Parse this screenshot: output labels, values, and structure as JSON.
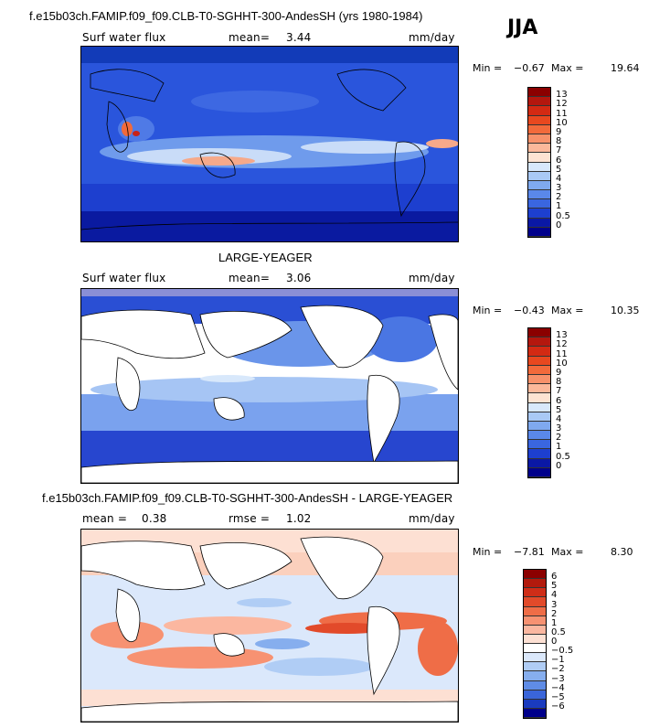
{
  "header": {
    "title": "f.e15b03ch.FAMIP.f09_f09.CLB-T0-SGHHT-300-AndesSH (yrs 1980-1984)",
    "season": "JJA"
  },
  "panel1": {
    "field": "Surf water flux",
    "stat_label": "mean=",
    "stat_value": "3.44",
    "units": "mm/day",
    "min_label": "Min =",
    "min_value": "−0.67",
    "max_label": "Max =",
    "max_value": "19.64",
    "ticks": [
      "13",
      "12",
      "11",
      "10",
      "9",
      "8",
      "7",
      "6",
      "5",
      "4",
      "3",
      "2",
      "1",
      "0.5",
      "0"
    ],
    "colors": [
      "#8b0000",
      "#b4170e",
      "#d32a13",
      "#e8481f",
      "#f26a3b",
      "#f7916a",
      "#fbb89a",
      "#fde3d2",
      "#d8e8fb",
      "#a9c9f5",
      "#7fa9ef",
      "#5a88ea",
      "#3a66e0",
      "#1d3fcf",
      "#0a18a5",
      "#00008b"
    ]
  },
  "panel2": {
    "title": "LARGE-YEAGER",
    "field": "Surf water flux",
    "stat_label": "mean=",
    "stat_value": "3.06",
    "units": "mm/day",
    "min_label": "Min =",
    "min_value": "−0.43",
    "max_label": "Max =",
    "max_value": "10.35",
    "ticks": [
      "13",
      "12",
      "11",
      "10",
      "9",
      "8",
      "7",
      "6",
      "5",
      "4",
      "3",
      "2",
      "1",
      "0.5",
      "0"
    ],
    "colors": [
      "#8b0000",
      "#b4170e",
      "#d32a13",
      "#e8481f",
      "#f26a3b",
      "#f7916a",
      "#fbb89a",
      "#fde3d2",
      "#d8e8fb",
      "#a9c9f5",
      "#7fa9ef",
      "#5a88ea",
      "#3a66e0",
      "#1d3fcf",
      "#0a18a5",
      "#00008b"
    ]
  },
  "panel3": {
    "title": "f.e15b03ch.FAMIP.f09_f09.CLB-T0-SGHHT-300-AndesSH - LARGE-YEAGER",
    "mean_label": "mean =",
    "mean_value": "0.38",
    "rmse_label": "rmse =",
    "rmse_value": "1.02",
    "units": "mm/day",
    "min_label": "Min =",
    "min_value": "−7.81",
    "max_label": "Max =",
    "max_value": "8.30",
    "ticks": [
      "6",
      "5",
      "4",
      "3",
      "2",
      "1",
      "0.5",
      "0",
      "−0.5",
      "−1",
      "−2",
      "−3",
      "−4",
      "−5",
      "−6"
    ],
    "colors": [
      "#8b0000",
      "#b21a0d",
      "#cf2d18",
      "#e24a2a",
      "#ef6d47",
      "#f79272",
      "#fbb7a0",
      "#fde0d3",
      "#ffffff",
      "#dbe8fb",
      "#b0cdf5",
      "#86aeee",
      "#5f8ce6",
      "#3a65d9",
      "#1a3bbf",
      "#00008b"
    ]
  }
}
